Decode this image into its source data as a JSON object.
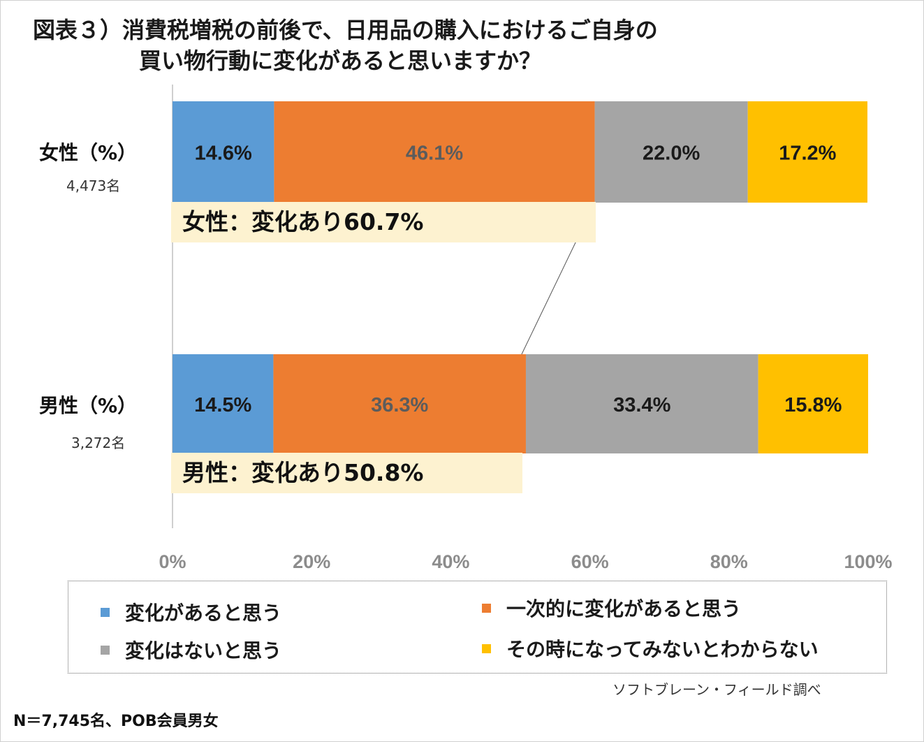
{
  "title": {
    "line1": "図表３）消費税増税の前後で、日用品の購入におけるご自身の",
    "line2": "買い物行動に変化があると思いますか？"
  },
  "chart_data": {
    "type": "bar",
    "orientation": "horizontal",
    "stacked": true,
    "categories": [
      "女性（%）",
      "男性（%）"
    ],
    "sample_sizes": [
      "4,473名",
      "3,272名"
    ],
    "series": [
      {
        "name": "変化があると思う",
        "values": [
          14.6,
          14.5
        ],
        "labels": [
          "14.6%",
          "14.5%"
        ],
        "color": "#5b9bd5"
      },
      {
        "name": "一次的に変化があると思う",
        "values": [
          46.1,
          36.3
        ],
        "labels": [
          "46.1%",
          "36.3%"
        ],
        "color": "#ed7d31"
      },
      {
        "name": "変化はないと思う",
        "values": [
          22.0,
          33.4
        ],
        "labels": [
          "22.0%",
          "33.4%"
        ],
        "color": "#a5a5a5"
      },
      {
        "name": "その時になってみないとわからない",
        "values": [
          17.2,
          15.8
        ],
        "labels": [
          "17.2%",
          "15.8%"
        ],
        "color": "#ffc000"
      }
    ],
    "xlim": [
      0,
      100
    ],
    "x_ticks": [
      "0%",
      "20%",
      "40%",
      "60%",
      "80%",
      "100%"
    ],
    "summaries": [
      "女性：変化あり60.7%",
      "男性：変化あり50.8%"
    ],
    "legend_position": "bottom"
  },
  "source": "ソフトブレーン・フィールド調べ",
  "note": "N＝7,745名、POB会員男女"
}
